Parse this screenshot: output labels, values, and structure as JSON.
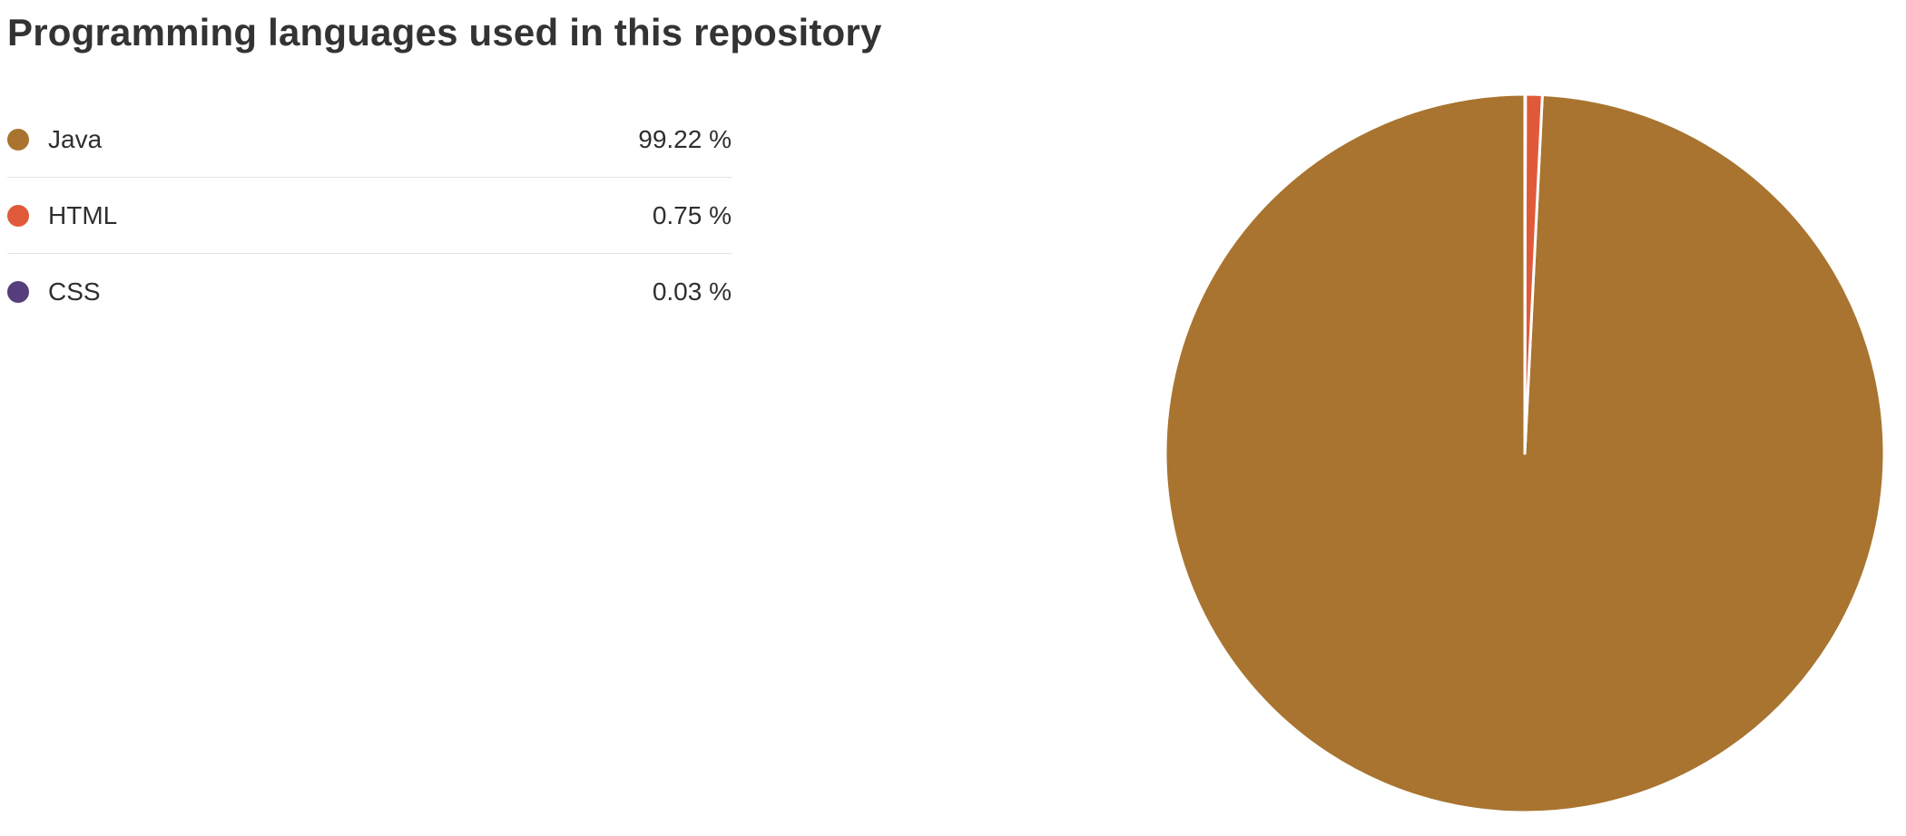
{
  "header": {
    "title": "Programming languages used in this repository"
  },
  "legend": {
    "items": [
      {
        "name": "Java",
        "percent_label": "99.22 %",
        "color": "#a87430"
      },
      {
        "name": "HTML",
        "percent_label": "0.75 %",
        "color": "#e05a3a"
      },
      {
        "name": "CSS",
        "percent_label": "0.03 %",
        "color": "#563d7c"
      }
    ]
  },
  "chart_data": {
    "type": "pie",
    "title": "Programming languages used in this repository",
    "categories": [
      "Java",
      "HTML",
      "CSS"
    ],
    "values": [
      99.22,
      0.75,
      0.03
    ],
    "colors": [
      "#a87430",
      "#e05a3a",
      "#563d7c"
    ],
    "legend": "left",
    "slice_separator_color": "#ffffff"
  }
}
